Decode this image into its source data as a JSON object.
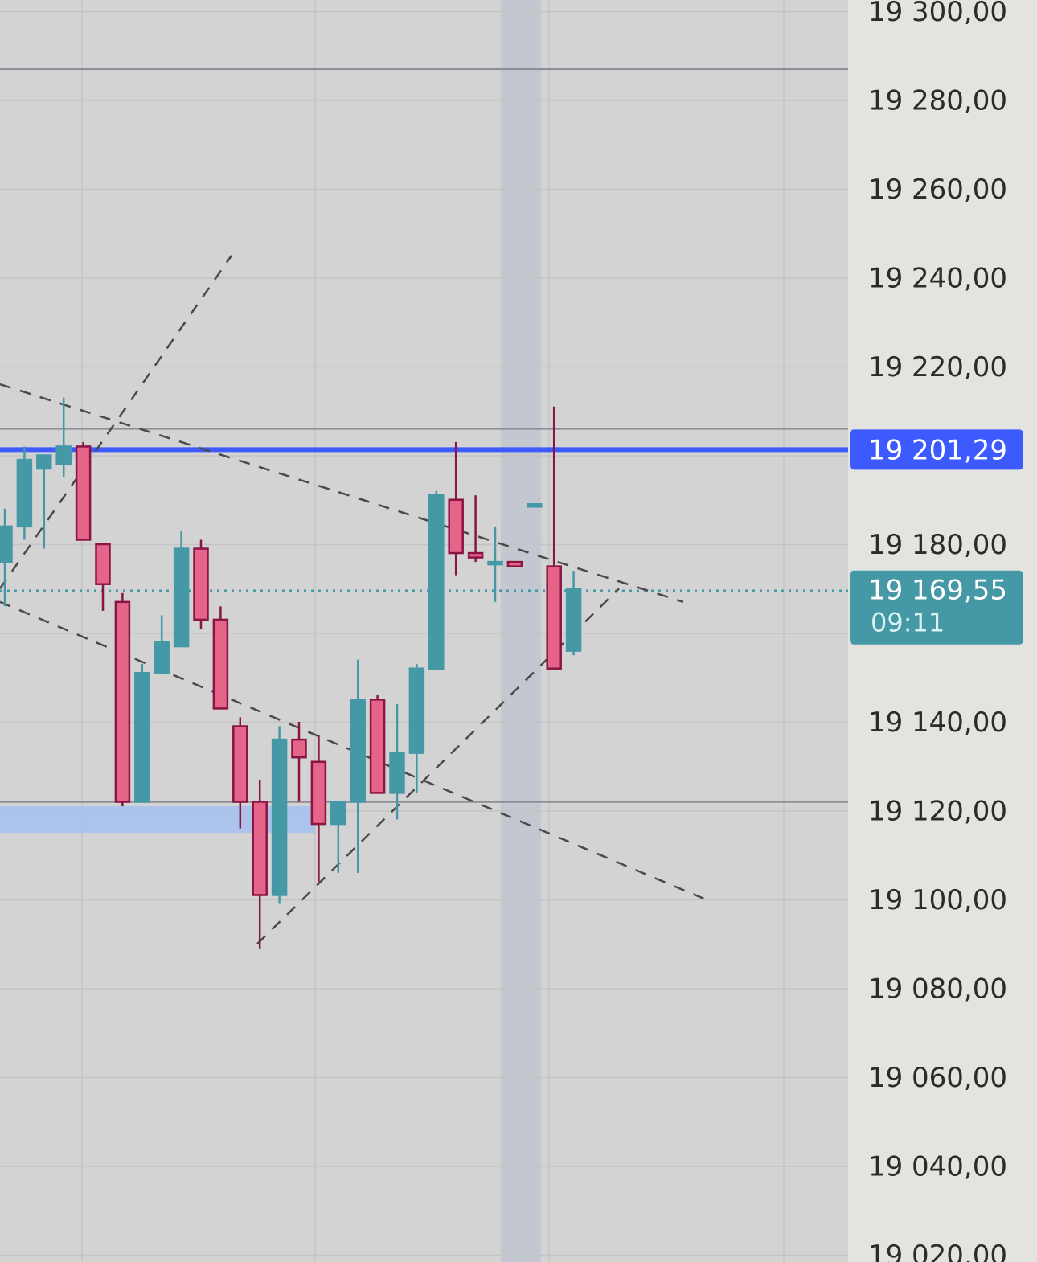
{
  "chart_data": {
    "type": "candlestick",
    "title": "",
    "xlabel": "",
    "ylabel": "",
    "ylim": [
      19020,
      19300
    ],
    "y_tick_labels": [
      "19 300,00",
      "19 280,00",
      "19 260,00",
      "19 240,00",
      "19 220,00",
      "19 180,00",
      "19 140,00",
      "19 120,00",
      "19 100,00",
      "19 080,00",
      "19 060,00",
      "19 040,00",
      "19 020,00"
    ],
    "y_tick_values": [
      19300,
      19280,
      19260,
      19240,
      19220,
      19180,
      19140,
      19120,
      19100,
      19080,
      19060,
      19040,
      19020
    ],
    "grid": true,
    "candles": [
      {
        "o": 19176,
        "h": 19188,
        "l": 19166,
        "c": 19184
      },
      {
        "o": 19184,
        "h": 19202,
        "l": 19181,
        "c": 19199
      },
      {
        "o": 19197,
        "h": 19200,
        "l": 19179,
        "c": 19200
      },
      {
        "o": 19198,
        "h": 19213,
        "l": 19195,
        "c": 19202
      },
      {
        "o": 19202,
        "h": 19203,
        "l": 19181,
        "c": 19181
      },
      {
        "o": 19180,
        "h": 19180,
        "l": 19165,
        "c": 19171
      },
      {
        "o": 19167,
        "h": 19169,
        "l": 19121,
        "c": 19122
      },
      {
        "o": 19122,
        "h": 19153,
        "l": 19122,
        "c": 19151
      },
      {
        "o": 19151,
        "h": 19164,
        "l": 19151,
        "c": 19158
      },
      {
        "o": 19157,
        "h": 19183,
        "l": 19157,
        "c": 19179
      },
      {
        "o": 19179,
        "h": 19181,
        "l": 19161,
        "c": 19163
      },
      {
        "o": 19163,
        "h": 19166,
        "l": 19143,
        "c": 19143
      },
      {
        "o": 19139,
        "h": 19141,
        "l": 19116,
        "c": 19122
      },
      {
        "o": 19122,
        "h": 19127,
        "l": 19089,
        "c": 19101
      },
      {
        "o": 19101,
        "h": 19139,
        "l": 19099,
        "c": 19136
      },
      {
        "o": 19136,
        "h": 19140,
        "l": 19122,
        "c": 19132
      },
      {
        "o": 19131,
        "h": 19137,
        "l": 19104,
        "c": 19117
      },
      {
        "o": 19117,
        "h": 19122,
        "l": 19106,
        "c": 19122
      },
      {
        "o": 19122,
        "h": 19154,
        "l": 19106,
        "c": 19145
      },
      {
        "o": 19145,
        "h": 19146,
        "l": 19124,
        "c": 19124
      },
      {
        "o": 19124,
        "h": 19144,
        "l": 19118,
        "c": 19133
      },
      {
        "o": 19133,
        "h": 19153,
        "l": 19124,
        "c": 19152
      },
      {
        "o": 19152,
        "h": 19192,
        "l": 19152,
        "c": 19191
      },
      {
        "o": 19190,
        "h": 19203,
        "l": 19173,
        "c": 19178
      },
      {
        "o": 19178,
        "h": 19191,
        "l": 19176,
        "c": 19177
      },
      {
        "o": 19176,
        "h": 19184,
        "l": 19167,
        "c": 19176
      },
      {
        "o": 19176,
        "h": 19176,
        "l": 19175,
        "c": 19175
      },
      {
        "o": 19189,
        "h": 19189,
        "l": 19189,
        "c": 19189
      },
      {
        "o": 19175,
        "h": 19211,
        "l": 19152,
        "c": 19152
      },
      {
        "o": 19156,
        "h": 19174,
        "l": 19155,
        "c": 19170
      }
    ],
    "price_line": {
      "value": 19201.29,
      "label": "19 201,29",
      "color": "#3d5afe"
    },
    "last_price": {
      "value": 19169.55,
      "label": "19 169,55",
      "countdown": "09:11",
      "color": "#4598a6"
    },
    "horizontal_lines": [
      19287,
      19206,
      19122
    ],
    "demand_zone": {
      "from": 19115,
      "to": 19121
    },
    "colors": {
      "up": "#4598a6",
      "down": "#e56489",
      "down_border": "#8a1545",
      "grid": "#c4c4c4",
      "background": "#d3d3d3",
      "axis_background": "#e3e3df",
      "highlight_column": "#c3c7d0",
      "zone": "#aac2ec",
      "trendline": "#4a4a4a"
    }
  }
}
